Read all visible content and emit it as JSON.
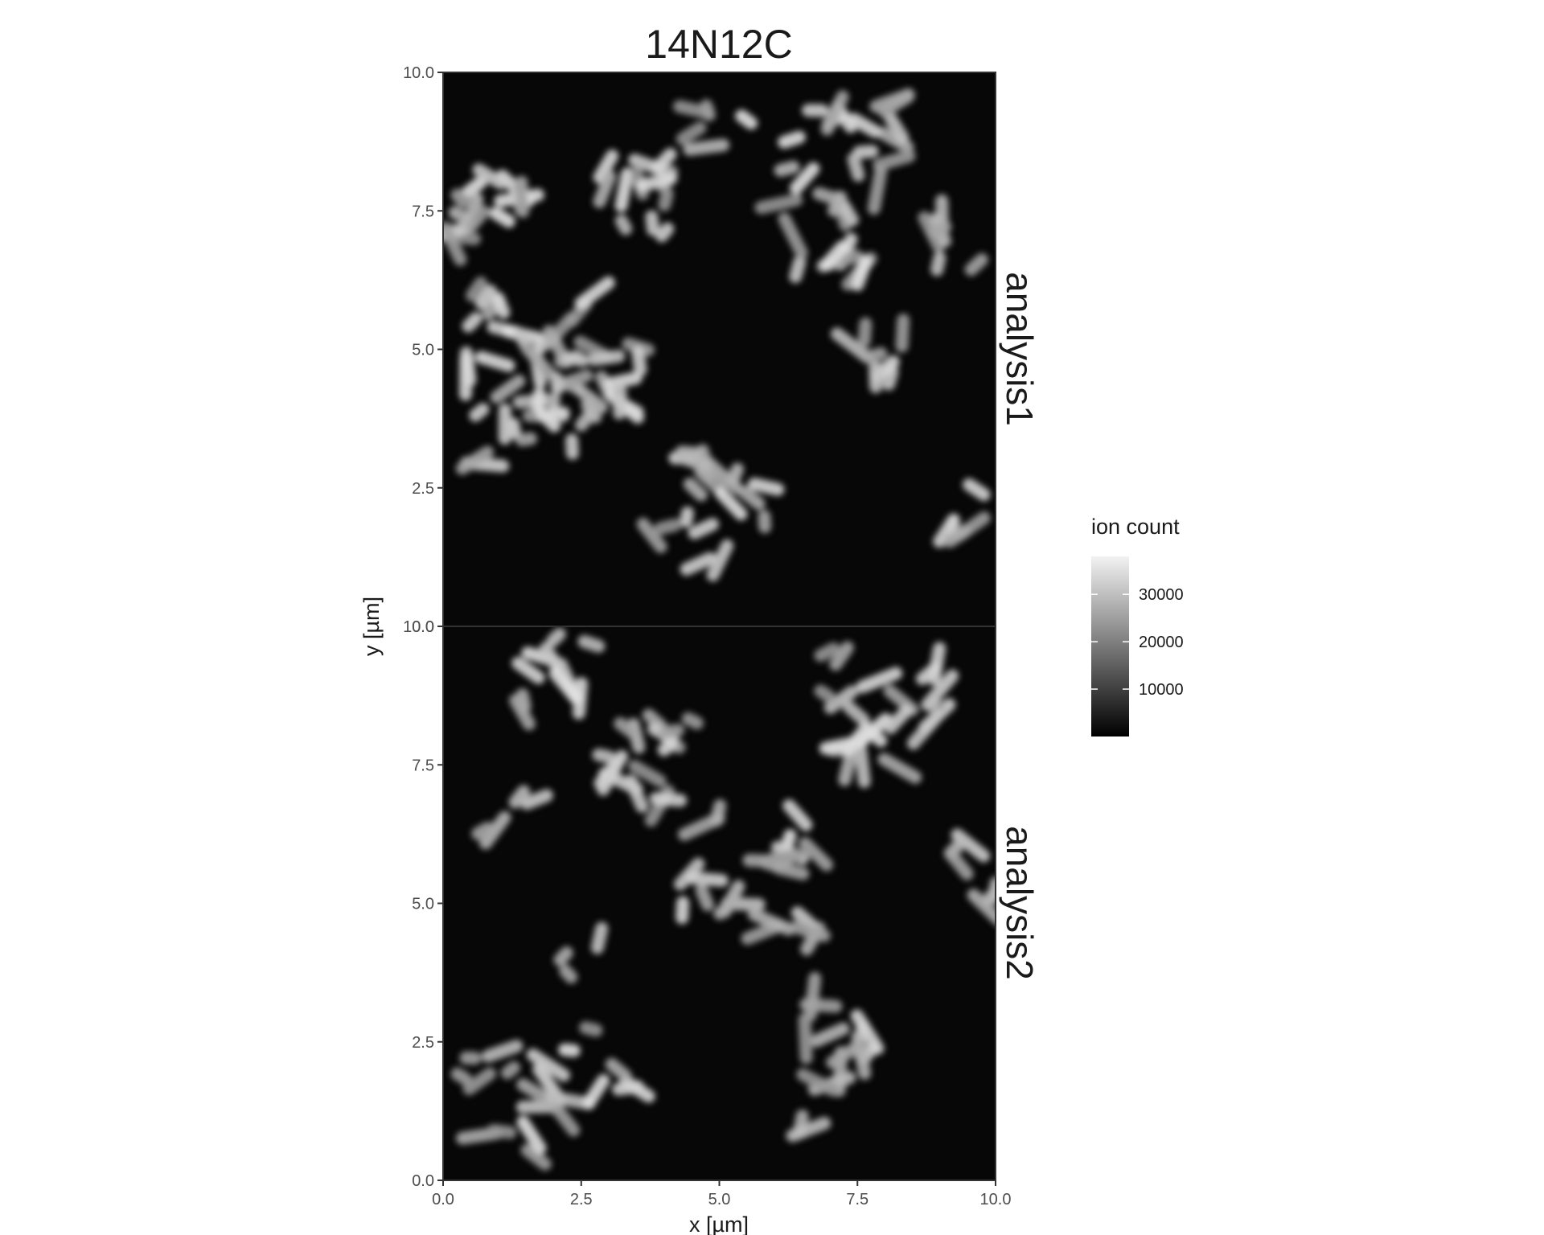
{
  "chart_data": {
    "type": "heatmap",
    "title": "14N12C",
    "xlabel": "x [µm]",
    "ylabel": "y [µm]",
    "xlim": [
      0,
      10
    ],
    "ylim": [
      0,
      10
    ],
    "x_ticks": [
      "0.0",
      "2.5",
      "5.0",
      "7.5",
      "10.0"
    ],
    "y_ticks": [
      "0.0",
      "2.5",
      "5.0",
      "7.5",
      "10.0"
    ],
    "facets": [
      "analysis1",
      "analysis2"
    ],
    "colormap": {
      "low": "#000000",
      "high": "#f2f2f2"
    },
    "legend": {
      "title": "ion count",
      "placement": "right",
      "ticks": [
        "10000",
        "20000",
        "30000"
      ],
      "tick_values": [
        10000,
        20000,
        30000
      ],
      "range": [
        0,
        38000
      ]
    }
  }
}
